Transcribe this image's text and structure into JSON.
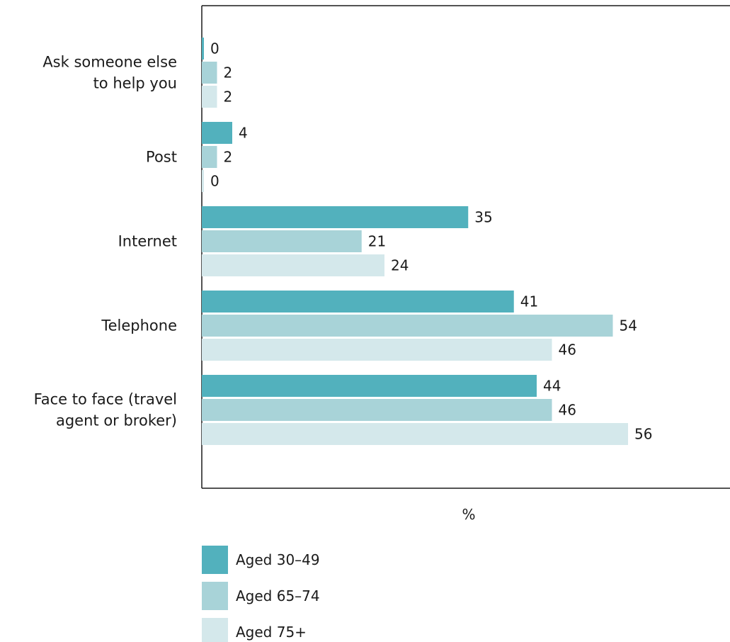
{
  "chart_data": {
    "type": "bar",
    "orientation": "horizontal",
    "categories": [
      "Ask someone else to help you",
      "Post",
      "Internet",
      "Telephone",
      "Face to face (travel agent or broker)"
    ],
    "category_label_lines": [
      [
        "Ask someone else",
        "to help you"
      ],
      [
        "Post"
      ],
      [
        "Internet"
      ],
      [
        "Telephone"
      ],
      [
        "Face to face (travel",
        "agent or broker)"
      ]
    ],
    "series": [
      {
        "name": "Aged 30–49",
        "color": "#52b1bd",
        "values": [
          0,
          4,
          35,
          41,
          44
        ]
      },
      {
        "name": "Aged 65–74",
        "color": "#a8d3d8",
        "values": [
          2,
          2,
          21,
          54,
          46
        ]
      },
      {
        "name": "Aged 75+",
        "color": "#d4e8eb",
        "values": [
          2,
          0,
          24,
          46,
          56
        ]
      }
    ],
    "xlabel": "%",
    "ylabel": "",
    "xlim": [
      0,
      70
    ],
    "grid": false,
    "legend_position": "bottom"
  }
}
